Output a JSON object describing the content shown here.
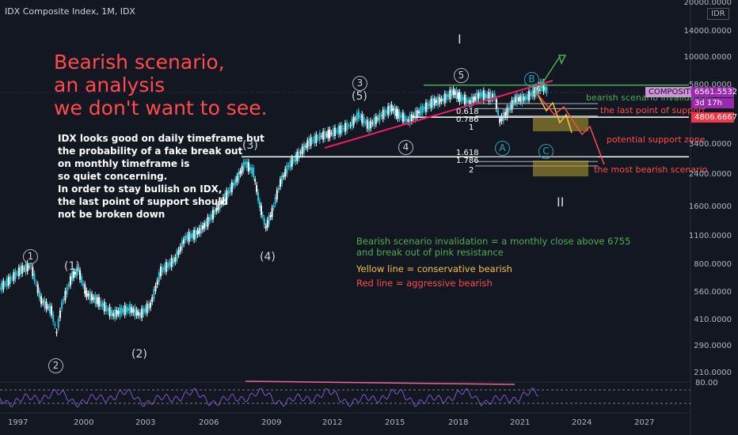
{
  "header": {
    "title": "IDX Composite Index, 1M, IDX"
  },
  "annotation": {
    "title_lines": [
      "Bearish scenario,",
      "an analysis",
      "we don't want to see."
    ],
    "body_lines": [
      "IDX looks good on daily timeframe but",
      "the probability of a fake break out",
      "on monthly timeframe is",
      "so quiet concerning.",
      "In order to stay bullish on IDX,",
      "the last point of support should",
      "not be broken down"
    ],
    "invalidation_line1": "Bearish scenario invalidation = a monthly close above 6755",
    "invalidation_line2": "and break out of pink resistance",
    "yellow_note": "Yellow line = conservative bearish",
    "red_note": "Red line = aggressive bearish",
    "colors": {
      "title": "#ff4b4b",
      "green": "#4caf50",
      "yellow": "#f5c242",
      "red": "#ff4b4b",
      "pink": "#e91e63",
      "purple": "#9c27b0"
    }
  },
  "labels": {
    "bearish_invalidation": "bearish scenario invalidation",
    "last_support": "the last point of support",
    "potential_support": "potential support zone",
    "most_bearish": "the most bearish scenario",
    "roman_one": "I",
    "roman_two": "II"
  },
  "waves": {
    "w1a": "1",
    "w2a": "2",
    "w1b": "(1)",
    "w2b": "(2)",
    "w3b": "(3)",
    "w4b": "(4)",
    "w3c": "3",
    "w5b": "(5)",
    "w4c": "4",
    "w5c": "5",
    "wA": "A",
    "wB": "B",
    "wC": "C"
  },
  "fib": {
    "upper": [
      "0.618",
      "0.786",
      "1"
    ],
    "lower": [
      "1.618",
      "1.786",
      "2"
    ]
  },
  "price_tags": {
    "composite_label": "COMPOSITE",
    "composite_value": "6561.5532",
    "countdown": "3d 17h",
    "red_value": "4806.6667",
    "currency": "IDR"
  },
  "chart_data": {
    "type": "line",
    "title": "IDX Composite Index, 1M, IDX",
    "yscale": "log",
    "ylim": [
      180,
      20000
    ],
    "xlim": [
      1996.0,
      2029.5
    ],
    "y_ticks": [
      "20000.0000",
      "14000.0000",
      "10000.0000",
      "5800.0000",
      "3400.0000",
      "2400.0000",
      "1600.0000",
      "1100.0000",
      "800.0000",
      "560.0000",
      "410.0000",
      "290.0000",
      "210.0000"
    ],
    "x_ticks": [
      "1997",
      "2000",
      "2003",
      "2006",
      "2009",
      "2012",
      "2015",
      "2018",
      "2021",
      "2024",
      "2027"
    ],
    "series": [
      {
        "x": [
          1996.0,
          1996.5,
          1997.0,
          1997.5,
          1998.0,
          1998.5,
          1998.75,
          1999.0,
          1999.5,
          1999.8,
          2000.2,
          2000.8,
          2001.5,
          2001.9,
          2002.3,
          2002.8,
          2003.3,
          2003.8,
          2004.5,
          2005.0,
          2005.5,
          2006.0,
          2006.5,
          2007.0,
          2007.5,
          2007.9,
          2008.3,
          2008.6,
          2008.9,
          2009.2,
          2009.6,
          2010.0,
          2010.5,
          2011.0,
          2011.6,
          2012.0,
          2012.5,
          2013.0,
          2013.4,
          2013.9,
          2014.5,
          2015.0,
          2015.3,
          2015.8,
          2016.5,
          2017.0,
          2017.5,
          2018.0,
          2018.3,
          2018.8,
          2019.3,
          2019.8,
          2020.0,
          2020.25,
          2020.6,
          2021.0,
          2021.5,
          2022.0,
          2022.3,
          2022.6
        ],
        "values": [
          560,
          620,
          700,
          740,
          480,
          420,
          320,
          450,
          650,
          700,
          520,
          470,
          400,
          420,
          430,
          400,
          450,
          690,
          800,
          1050,
          1100,
          1250,
          1500,
          1800,
          2200,
          2700,
          2400,
          1600,
          1200,
          1450,
          2100,
          2600,
          3000,
          3500,
          3800,
          3900,
          4100,
          4350,
          4950,
          4300,
          4900,
          5400,
          5000,
          4600,
          5300,
          5800,
          6000,
          6600,
          6200,
          5800,
          6400,
          6200,
          6300,
          4600,
          5100,
          6000,
          6100,
          6700,
          7200,
          6600
        ]
      }
    ],
    "levels": {
      "resistance_green": 7200,
      "last_support": 4806.6667,
      "fib_upper": [
        5700,
        5350,
        4880
      ],
      "fib_lower": [
        2920,
        2750,
        2600
      ]
    },
    "oscillator": {
      "label": "80.00"
    }
  }
}
